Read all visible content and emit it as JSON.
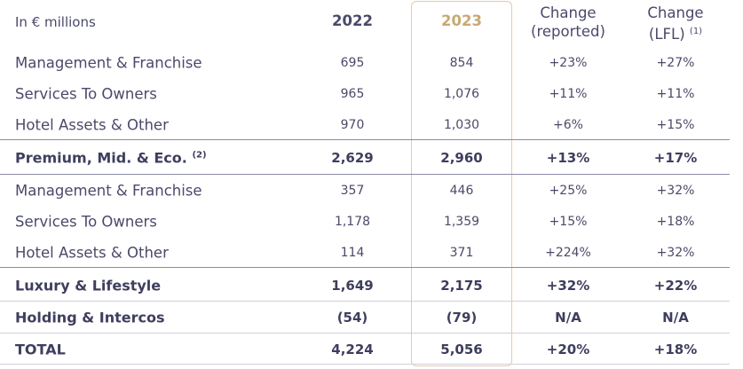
{
  "header": {
    "title": "In € millions",
    "year_prev": "2022",
    "year_curr": "2023",
    "change_reported_line1": "Change",
    "change_reported_line2": "(reported)",
    "change_lfl_line1": "Change",
    "change_lfl_line2": "(LFL)",
    "change_lfl_note": "(1)"
  },
  "rows": [
    {
      "label": "Management & Franchise",
      "v2022": "695",
      "v2023": "854",
      "reported": "+23%",
      "lfl": "+27%"
    },
    {
      "label": "Services To Owners",
      "v2022": "965",
      "v2023": "1,076",
      "reported": "+11%",
      "lfl": "+11%"
    },
    {
      "label": "Hotel Assets & Other",
      "v2022": "970",
      "v2023": "1,030",
      "reported": "+6%",
      "lfl": "+15%"
    },
    {
      "label": "Premium, Mid. & Eco.",
      "note": "(2)",
      "v2022": "2,629",
      "v2023": "2,960",
      "reported": "+13%",
      "lfl": "+17%"
    },
    {
      "label": "Management & Franchise",
      "v2022": "357",
      "v2023": "446",
      "reported": "+25%",
      "lfl": "+32%"
    },
    {
      "label": "Services To Owners",
      "v2022": "1,178",
      "v2023": "1,359",
      "reported": "+15%",
      "lfl": "+18%"
    },
    {
      "label": "Hotel Assets & Other",
      "v2022": "114",
      "v2023": "371",
      "reported": "+224%",
      "lfl": "+32%"
    },
    {
      "label": "Luxury & Lifestyle",
      "v2022": "1,649",
      "v2023": "2,175",
      "reported": "+32%",
      "lfl": "+22%"
    },
    {
      "label": "Holding & Intercos",
      "v2022": "(54)",
      "v2023": "(79)",
      "reported": "N/A",
      "lfl": "N/A"
    },
    {
      "label": "TOTAL",
      "v2022": "4,224",
      "v2023": "5,056",
      "reported": "+20%",
      "lfl": "+18%"
    }
  ],
  "colors": {
    "text": "#4a4a6a",
    "highlight_year": "#c9a873",
    "highlight_border": "#e8c9a6",
    "rule": "#8a8aa6"
  }
}
